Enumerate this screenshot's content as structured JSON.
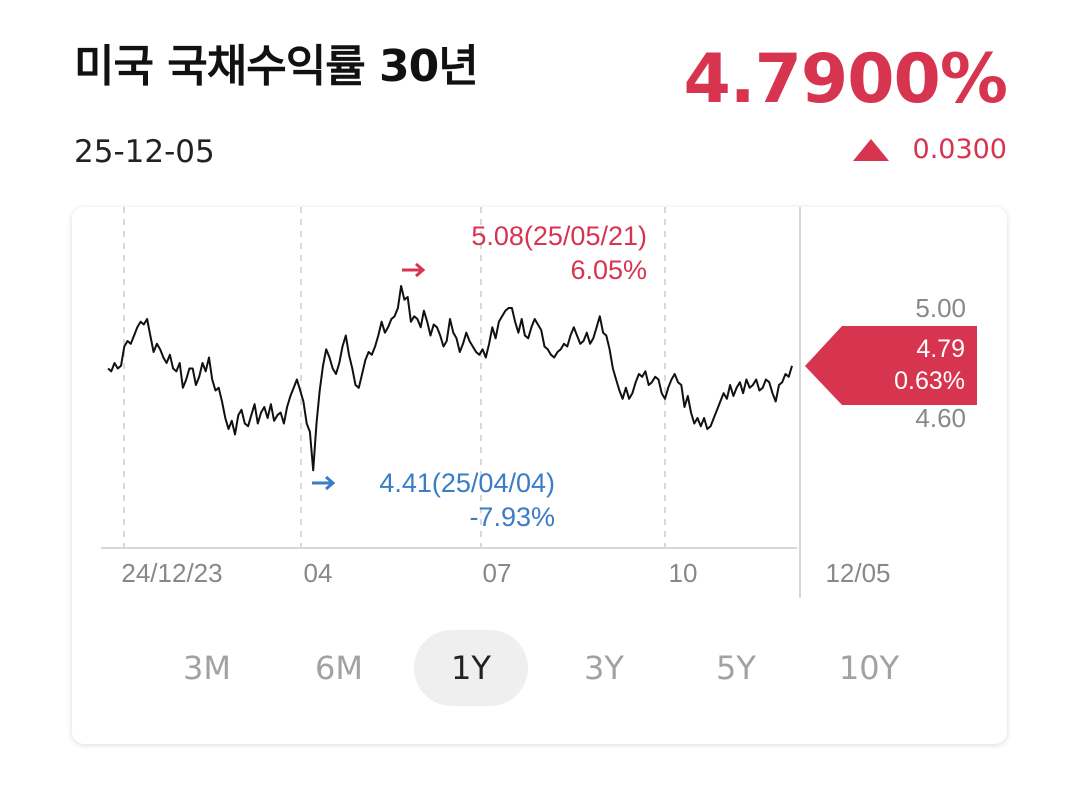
{
  "header": {
    "title": "미국 국채수익률 30년",
    "date": "25-12-05",
    "price": "4.7900%",
    "change": "0.0300"
  },
  "colors": {
    "up": "#d6344f",
    "down": "#3a7cc5",
    "line": "#111111"
  },
  "chart_data": {
    "type": "line",
    "y_ticks": [
      "5.00",
      "4.60"
    ],
    "x_ticks": [
      "24/12/23",
      "04",
      "07",
      "10"
    ],
    "x_end_label": "12/05",
    "last_value_label": "4.79",
    "last_change_label": "0.63%",
    "high": {
      "label": "5.08(25/05/21)",
      "pct": "6.05%"
    },
    "low": {
      "label": "4.41(25/04/04)",
      "pct": "-7.93%"
    },
    "ylim": [
      4.35,
      5.15
    ],
    "series": [
      {
        "values": [
          4.78,
          4.77,
          4.8,
          4.78,
          4.79,
          4.86,
          4.88,
          4.87,
          4.9,
          4.93,
          4.95,
          4.94,
          4.96,
          4.9,
          4.84,
          4.87,
          4.85,
          4.82,
          4.8,
          4.83,
          4.78,
          4.77,
          4.8,
          4.71,
          4.74,
          4.78,
          4.78,
          4.72,
          4.75,
          4.8,
          4.77,
          4.82,
          4.74,
          4.7,
          4.71,
          4.66,
          4.6,
          4.56,
          4.59,
          4.54,
          4.61,
          4.63,
          4.58,
          4.57,
          4.61,
          4.65,
          4.58,
          4.62,
          4.64,
          4.6,
          4.65,
          4.59,
          4.61,
          4.62,
          4.58,
          4.64,
          4.68,
          4.71,
          4.74,
          4.7,
          4.66,
          4.58,
          4.55,
          4.41,
          4.58,
          4.7,
          4.79,
          4.85,
          4.82,
          4.78,
          4.76,
          4.8,
          4.86,
          4.9,
          4.83,
          4.78,
          4.72,
          4.71,
          4.76,
          4.81,
          4.84,
          4.83,
          4.86,
          4.9,
          4.95,
          4.91,
          4.93,
          4.96,
          4.97,
          5.0,
          5.08,
          5.03,
          5.04,
          4.95,
          4.97,
          4.96,
          4.93,
          4.99,
          4.95,
          4.9,
          4.94,
          4.93,
          4.9,
          4.86,
          4.88,
          4.96,
          4.91,
          4.89,
          4.84,
          4.87,
          4.91,
          4.88,
          4.86,
          4.84,
          4.83,
          4.85,
          4.82,
          4.87,
          4.93,
          4.89,
          4.95,
          4.97,
          4.99,
          5.0,
          5.0,
          4.95,
          4.91,
          4.96,
          4.9,
          4.89,
          4.93,
          4.96,
          4.94,
          4.92,
          4.86,
          4.85,
          4.83,
          4.82,
          4.84,
          4.85,
          4.87,
          4.86,
          4.9,
          4.93,
          4.9,
          4.87,
          4.88,
          4.91,
          4.87,
          4.89,
          4.93,
          4.97,
          4.91,
          4.9,
          4.85,
          4.78,
          4.74,
          4.7,
          4.67,
          4.71,
          4.67,
          4.69,
          4.73,
          4.76,
          4.75,
          4.77,
          4.72,
          4.73,
          4.75,
          4.74,
          4.69,
          4.67,
          4.71,
          4.74,
          4.76,
          4.73,
          4.72,
          4.64,
          4.68,
          4.62,
          4.58,
          4.6,
          4.57,
          4.6,
          4.56,
          4.57,
          4.6,
          4.63,
          4.66,
          4.69,
          4.67,
          4.72,
          4.68,
          4.71,
          4.73,
          4.69,
          4.74,
          4.71,
          4.72,
          4.74,
          4.7,
          4.71,
          4.74,
          4.73,
          4.69,
          4.66,
          4.72,
          4.73,
          4.76,
          4.75,
          4.79
        ]
      }
    ],
    "grid": "dashed vertical lines at month ticks",
    "timeframes": [
      "3M",
      "6M",
      "1Y",
      "3Y",
      "5Y",
      "10Y"
    ],
    "active_timeframe": "1Y"
  }
}
